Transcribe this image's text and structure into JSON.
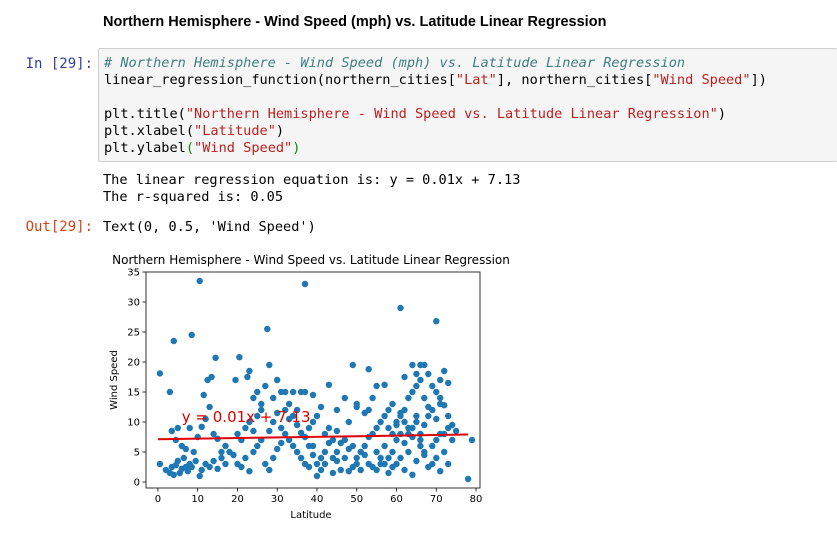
{
  "cell": {
    "heading": "Northern Hemisphere - Wind Speed (mph) vs. Latitude Linear Regression",
    "in_prompt": "In [29]:",
    "out_prompt": "Out[29]:",
    "code": {
      "comment": "# Northern Hemisphere - Wind Speed (mph) vs. Latitude Linear Regression",
      "line2_fn": "linear_regression_function(northern_cities[",
      "line2_s1": "\"Lat\"",
      "line2_mid": "], northern_cities[",
      "line2_s2": "\"Wind Speed\"",
      "line2_end": "])",
      "line4_fn": "plt.title(",
      "line4_s": "\"Northern Hemisphere - Wind Speed vs. Latitude Linear Regression\"",
      "line4_end": ")",
      "line5_fn": "plt.xlabel(",
      "line5_s": "\"Latitude\"",
      "line5_end": ")",
      "line6_fn": "plt.ylabel",
      "line6_open": "(",
      "line6_s": "\"Wind Speed\"",
      "line6_end": ")"
    },
    "stdout_line1": "The linear regression equation is: y = 0.01x + 7.13",
    "stdout_line2": "The r-squared is: 0.05",
    "out_value": "Text(0, 0.5, 'Wind Speed')"
  },
  "chart_data": {
    "type": "scatter",
    "title": "Northern Hemisphere - Wind Speed vs. Latitude Linear Regression",
    "xlabel": "Latitude",
    "ylabel": "Wind Speed",
    "xlim": [
      -3,
      81
    ],
    "ylim": [
      -1,
      35
    ],
    "xticks": [
      0,
      10,
      20,
      30,
      40,
      50,
      60,
      70,
      80
    ],
    "yticks": [
      0,
      5,
      10,
      15,
      20,
      25,
      30,
      35
    ],
    "point_color": "#1f77b4",
    "line_color": "#e00000",
    "annotation": "y = 0.01x + 7.13",
    "annotation_at": [
      6,
      10
    ],
    "regression": {
      "slope": 0.01,
      "intercept": 7.13,
      "x": [
        0,
        78
      ]
    },
    "points": [
      [
        0.5,
        18.1
      ],
      [
        3,
        15
      ],
      [
        4,
        23.5
      ],
      [
        8.5,
        24.5
      ],
      [
        10.5,
        33.5
      ],
      [
        14.5,
        20.7
      ],
      [
        20.5,
        20.8
      ],
      [
        27.5,
        25.5
      ],
      [
        37,
        33
      ],
      [
        61,
        29
      ],
      [
        70,
        26.8
      ],
      [
        0.5,
        3
      ],
      [
        2,
        2
      ],
      [
        3,
        1.5
      ],
      [
        3.5,
        2.5
      ],
      [
        4,
        1.2
      ],
      [
        4.5,
        2.8
      ],
      [
        5,
        3.5
      ],
      [
        5.5,
        1.5
      ],
      [
        6,
        2.2
      ],
      [
        6.5,
        4
      ],
      [
        7,
        2.5
      ],
      [
        7.5,
        1.8
      ],
      [
        8,
        3
      ],
      [
        8.5,
        2.5
      ],
      [
        9,
        5
      ],
      [
        9.5,
        3.5
      ],
      [
        3.5,
        8.5
      ],
      [
        4.5,
        7
      ],
      [
        5,
        9
      ],
      [
        6,
        6
      ],
      [
        7,
        5.5
      ],
      [
        8,
        9
      ],
      [
        10,
        7.5
      ],
      [
        11,
        9.2
      ],
      [
        12,
        10.5
      ],
      [
        13,
        12.5
      ],
      [
        14,
        8
      ],
      [
        15,
        7.2
      ],
      [
        16,
        5
      ],
      [
        17,
        6
      ],
      [
        12.5,
        17
      ],
      [
        13.5,
        17.5
      ],
      [
        11.5,
        14.5
      ],
      [
        10.5,
        1
      ],
      [
        11,
        2
      ],
      [
        12,
        3
      ],
      [
        13,
        2.5
      ],
      [
        14,
        3.5
      ],
      [
        15,
        2.2
      ],
      [
        16,
        4
      ],
      [
        17,
        3
      ],
      [
        18,
        5
      ],
      [
        19,
        4.5
      ],
      [
        20,
        8
      ],
      [
        21,
        7
      ],
      [
        22,
        9
      ],
      [
        23,
        10
      ],
      [
        24,
        8.5
      ],
      [
        25,
        11
      ],
      [
        26,
        12
      ],
      [
        19.5,
        17
      ],
      [
        22.5,
        17.5
      ],
      [
        23,
        18.5
      ],
      [
        24,
        14
      ],
      [
        25,
        15
      ],
      [
        26,
        13
      ],
      [
        27,
        16
      ],
      [
        28,
        19.5
      ],
      [
        29,
        14
      ],
      [
        30,
        17
      ],
      [
        31,
        15
      ],
      [
        32,
        15
      ],
      [
        33,
        13
      ],
      [
        34,
        15
      ],
      [
        35,
        12
      ],
      [
        36,
        15
      ],
      [
        37,
        15
      ],
      [
        39,
        14.5
      ],
      [
        43,
        16.2
      ],
      [
        20,
        3
      ],
      [
        21,
        2.5
      ],
      [
        22,
        4
      ],
      [
        23,
        1.8
      ],
      [
        24,
        5
      ],
      [
        25,
        6
      ],
      [
        26,
        7
      ],
      [
        27,
        3
      ],
      [
        28,
        2
      ],
      [
        29,
        4
      ],
      [
        30,
        5.5
      ],
      [
        31,
        6.5
      ],
      [
        32,
        8
      ],
      [
        33,
        7
      ],
      [
        34,
        6
      ],
      [
        35,
        5
      ],
      [
        36,
        4
      ],
      [
        37,
        3
      ],
      [
        38,
        2.5
      ],
      [
        39,
        6
      ],
      [
        28,
        8.5
      ],
      [
        29,
        10
      ],
      [
        30,
        11.5
      ],
      [
        31,
        9
      ],
      [
        32,
        12
      ],
      [
        33,
        10.5
      ],
      [
        34,
        11
      ],
      [
        35,
        9.5
      ],
      [
        36,
        8.2
      ],
      [
        37,
        7.5
      ],
      [
        38,
        9
      ],
      [
        39,
        10
      ],
      [
        40,
        11
      ],
      [
        41,
        12.5
      ],
      [
        42,
        8
      ],
      [
        43,
        9
      ],
      [
        44,
        7
      ],
      [
        45,
        8.5
      ],
      [
        38,
        6
      ],
      [
        39,
        4.5
      ],
      [
        40,
        3
      ],
      [
        41,
        2
      ],
      [
        42,
        5
      ],
      [
        43,
        6.5
      ],
      [
        44,
        4
      ],
      [
        45,
        3.5
      ],
      [
        46,
        2
      ],
      [
        47,
        4
      ],
      [
        48,
        5.5
      ],
      [
        49,
        6
      ],
      [
        50,
        3
      ],
      [
        51,
        2
      ],
      [
        52,
        4.5
      ],
      [
        53,
        3
      ],
      [
        54,
        2.5
      ],
      [
        55,
        5
      ],
      [
        56,
        4
      ],
      [
        57,
        3
      ],
      [
        40,
        1
      ],
      [
        41,
        4
      ],
      [
        42,
        3
      ],
      [
        44,
        1.5
      ],
      [
        45,
        5
      ],
      [
        46,
        6.5
      ],
      [
        47,
        7
      ],
      [
        48,
        1.8
      ],
      [
        49,
        2.5
      ],
      [
        50,
        4
      ],
      [
        51,
        5
      ],
      [
        52,
        6
      ],
      [
        53,
        7.5
      ],
      [
        54,
        8
      ],
      [
        55,
        9
      ],
      [
        56,
        10
      ],
      [
        57,
        11
      ],
      [
        58,
        9
      ],
      [
        45,
        12
      ],
      [
        47,
        14
      ],
      [
        48,
        10
      ],
      [
        50,
        13
      ],
      [
        52,
        11.5
      ],
      [
        53,
        12
      ],
      [
        54,
        14
      ],
      [
        55,
        16
      ],
      [
        57,
        16.2
      ],
      [
        58,
        12
      ],
      [
        59,
        13
      ],
      [
        60,
        10
      ],
      [
        49,
        19.5
      ],
      [
        53,
        18.8
      ],
      [
        50,
        12.5
      ],
      [
        58,
        1.5
      ],
      [
        59,
        2.5
      ],
      [
        60,
        3
      ],
      [
        61,
        4
      ],
      [
        62,
        2
      ],
      [
        63,
        5
      ],
      [
        64,
        1.2
      ],
      [
        65,
        3.5
      ],
      [
        66,
        6
      ],
      [
        67,
        4.5
      ],
      [
        68,
        2.5
      ],
      [
        69,
        3
      ],
      [
        70,
        4
      ],
      [
        71,
        1.8
      ],
      [
        72,
        5
      ],
      [
        73,
        3
      ],
      [
        60,
        7
      ],
      [
        61,
        8
      ],
      [
        62,
        6.5
      ],
      [
        63,
        9
      ],
      [
        64,
        7.5
      ],
      [
        65,
        10
      ],
      [
        66,
        8
      ],
      [
        67,
        9.5
      ],
      [
        68,
        11
      ],
      [
        69,
        12
      ],
      [
        70,
        10.5
      ],
      [
        71,
        13
      ],
      [
        72,
        8
      ],
      [
        73,
        9
      ],
      [
        74,
        7
      ],
      [
        75,
        8.5
      ],
      [
        61,
        11
      ],
      [
        62,
        12
      ],
      [
        63,
        14
      ],
      [
        64,
        15
      ],
      [
        65,
        16
      ],
      [
        66,
        17
      ],
      [
        67,
        19.5
      ],
      [
        68,
        18
      ],
      [
        69,
        16
      ],
      [
        70,
        15
      ],
      [
        71,
        17
      ],
      [
        72,
        18.5
      ],
      [
        64,
        19.5
      ],
      [
        65,
        18
      ],
      [
        66,
        19.5
      ],
      [
        62,
        17.5
      ],
      [
        67,
        14
      ],
      [
        68,
        12.5
      ],
      [
        59,
        5
      ],
      [
        58,
        4
      ],
      [
        57,
        6
      ],
      [
        56,
        3
      ],
      [
        55,
        2
      ],
      [
        59,
        8
      ],
      [
        60,
        9.5
      ],
      [
        61,
        11.5
      ],
      [
        62,
        10
      ],
      [
        63,
        8
      ],
      [
        64,
        9
      ],
      [
        65,
        11
      ],
      [
        66,
        7
      ],
      [
        67,
        5
      ],
      [
        69,
        6
      ],
      [
        70,
        7
      ],
      [
        71,
        8
      ],
      [
        78,
        0.5
      ],
      [
        79,
        7
      ],
      [
        73,
        11
      ],
      [
        72,
        12.8
      ],
      [
        74,
        9.5
      ],
      [
        71,
        14
      ],
      [
        73,
        16.5
      ]
    ]
  }
}
